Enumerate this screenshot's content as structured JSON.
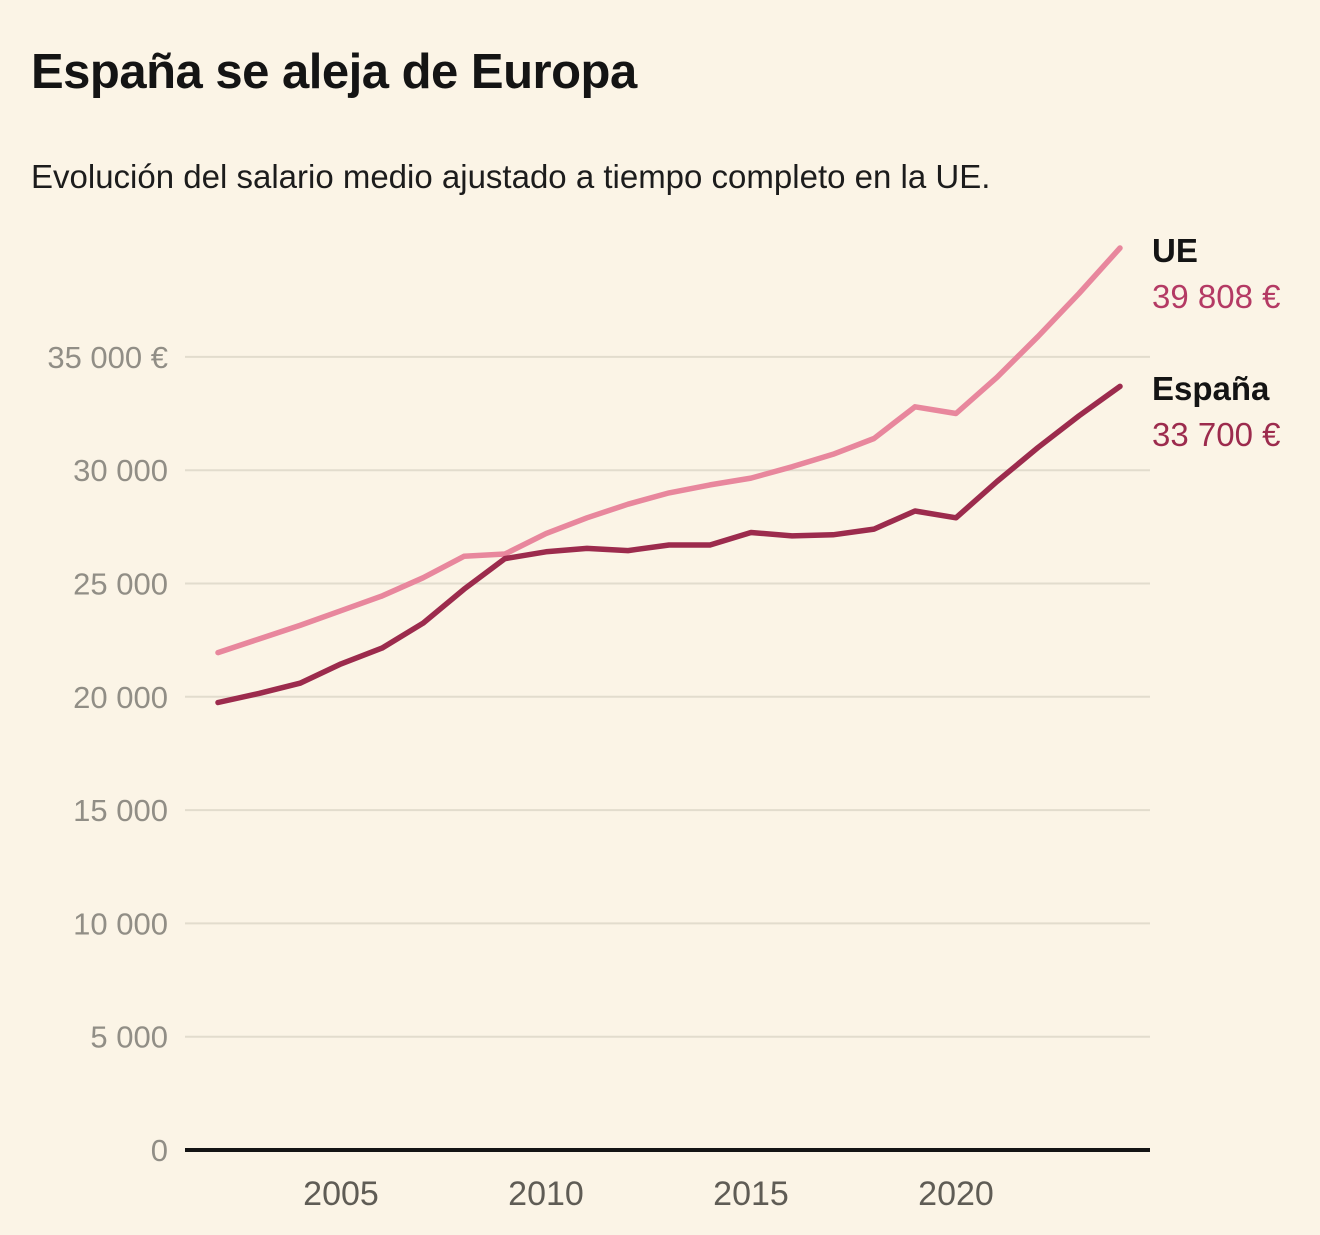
{
  "header": {
    "title": "España se aleja de Europa",
    "subtitle": "Evolución del salario medio ajustado a tiempo completo en la UE."
  },
  "legend": {
    "ue": {
      "name": "UE",
      "value": "39 808 €"
    },
    "espana": {
      "name": "España",
      "value": "33 700 €"
    }
  },
  "colors": {
    "background": "#fbf4e6",
    "ue_line": "#e8879d",
    "espana_line": "#9c2b4d",
    "ue_value_text": "#b43a64",
    "espana_value_text": "#9c2b4d",
    "gridline": "#e2dccd",
    "axis_line": "#141414",
    "y_tick_text": "#918e86",
    "x_tick_text": "#5f5c55"
  },
  "chart_data": {
    "type": "line",
    "title": "España se aleja de Europa",
    "subtitle": "Evolución del salario medio ajustado a tiempo completo en la UE.",
    "x": [
      2002,
      2003,
      2004,
      2005,
      2006,
      2007,
      2008,
      2009,
      2010,
      2011,
      2012,
      2013,
      2014,
      2015,
      2016,
      2017,
      2018,
      2019,
      2020,
      2021,
      2022,
      2023,
      2024
    ],
    "series": [
      {
        "key": "ue",
        "name": "UE",
        "color": "#e8879d",
        "end_label": "39 808 €",
        "end_value": 39808,
        "values": [
          21950,
          22550,
          23150,
          23800,
          24450,
          25250,
          26200,
          26300,
          27200,
          27900,
          28500,
          29000,
          29350,
          29650,
          30150,
          30700,
          31400,
          32800,
          32500,
          34100,
          35900,
          37800,
          39808
        ]
      },
      {
        "key": "espana",
        "name": "España",
        "color": "#9c2b4d",
        "end_label": "33 700 €",
        "end_value": 33700,
        "values": [
          19750,
          20150,
          20600,
          21450,
          22150,
          23250,
          24750,
          26100,
          26400,
          26550,
          26450,
          26700,
          26700,
          27250,
          27100,
          27150,
          27400,
          28200,
          27900,
          29500,
          31000,
          32400,
          33700
        ]
      }
    ],
    "yticks": [
      {
        "value": 0,
        "label": "0"
      },
      {
        "value": 5000,
        "label": "5 000"
      },
      {
        "value": 10000,
        "label": "10 000"
      },
      {
        "value": 15000,
        "label": "15 000"
      },
      {
        "value": 20000,
        "label": "20 000"
      },
      {
        "value": 25000,
        "label": "25 000"
      },
      {
        "value": 30000,
        "label": "30 000"
      },
      {
        "value": 35000,
        "label": "35 000 €"
      }
    ],
    "xticks": [
      {
        "value": 2005,
        "label": "2005"
      },
      {
        "value": 2010,
        "label": "2010"
      },
      {
        "value": 2015,
        "label": "2015"
      },
      {
        "value": 2020,
        "label": "2020"
      }
    ],
    "xlim": [
      2002,
      2024
    ],
    "ylim": [
      0,
      41000
    ],
    "grid": "horizontal",
    "legend_position": "right-end"
  }
}
